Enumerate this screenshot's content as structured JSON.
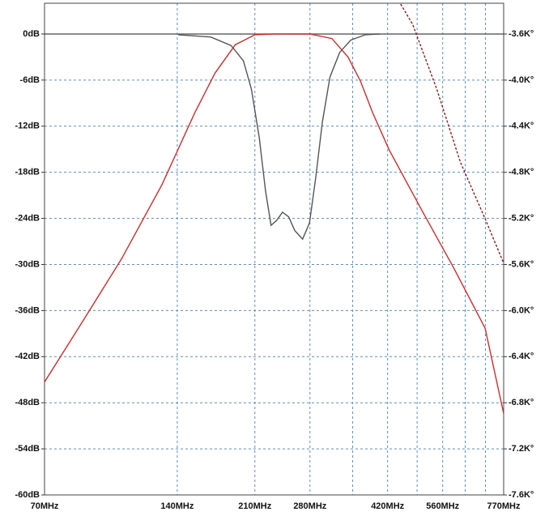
{
  "chart_data": {
    "type": "line",
    "log_x": true,
    "grid": true,
    "xlim": [
      70,
      770
    ],
    "ylim": [
      -60,
      4
    ],
    "y2lim": [
      -7600,
      -3333
    ],
    "xticks": [
      {
        "value": 70,
        "label": "70MHz"
      },
      {
        "value": 140,
        "label": "140MHz"
      },
      {
        "value": 210,
        "label": "210MHz"
      },
      {
        "value": 280,
        "label": "280MHz"
      },
      {
        "value": 420,
        "label": "420MHz"
      },
      {
        "value": 560,
        "label": "560MHz"
      },
      {
        "value": 770,
        "label": "770MHz"
      }
    ],
    "xminor_ticks": [
      350,
      490,
      630,
      700
    ],
    "yticks": [
      {
        "value": 0,
        "label": "0dB"
      },
      {
        "value": -6,
        "label": "-6dB"
      },
      {
        "value": -12,
        "label": "-12dB"
      },
      {
        "value": -18,
        "label": "-18dB"
      },
      {
        "value": -24,
        "label": "-24dB"
      },
      {
        "value": -30,
        "label": "-30dB"
      },
      {
        "value": -36,
        "label": "-36dB"
      },
      {
        "value": -42,
        "label": "-42dB"
      },
      {
        "value": -48,
        "label": "-48dB"
      },
      {
        "value": -54,
        "label": "-54dB"
      },
      {
        "value": -60,
        "label": "-60dB"
      }
    ],
    "y2ticks": [
      {
        "value": -3600,
        "label": "-3.6K°"
      },
      {
        "value": -4000,
        "label": "-4.0K°"
      },
      {
        "value": -4400,
        "label": "-4.4K°"
      },
      {
        "value": -4800,
        "label": "-4.8K°"
      },
      {
        "value": -5200,
        "label": "-5.2K°"
      },
      {
        "value": -5600,
        "label": "-5.6K°"
      },
      {
        "value": -6000,
        "label": "-6.0K°"
      },
      {
        "value": -6400,
        "label": "-6.4K°"
      },
      {
        "value": -6800,
        "label": "-6.8K°"
      },
      {
        "value": -7200,
        "label": "-7.2K°"
      },
      {
        "value": -7600,
        "label": "-7.6K°"
      }
    ],
    "series": [
      {
        "color": "#d42a2a",
        "dashed": false,
        "x": [
          70,
          84.6,
          104.6,
          129.3,
          153.3,
          170.5,
          189.6,
          210,
          233.5,
          280,
          314,
          341.6,
          364.3,
          388.7,
          423.7,
          502.7,
          592.6,
          698.8,
          770
        ],
        "values": [
          -45.3,
          -37.8,
          -29.3,
          -19.6,
          -10.3,
          -5.1,
          -1.4,
          -0.1,
          0,
          0,
          -0.6,
          -3.0,
          -6.1,
          -10.3,
          -15.1,
          -23.0,
          -30.4,
          -38.3,
          -49.4
        ]
      },
      {
        "color": "#555555",
        "dashed": false,
        "x": [
          140.7,
          166.8,
          185.5,
          197.8,
          206.2,
          214.9,
          222,
          228.5,
          235,
          242.6,
          250.5,
          258.7,
          269.4,
          279.3,
          288.4,
          298.8,
          310.8,
          327,
          346.5,
          374,
          404
        ],
        "values": [
          -0.1,
          -0.4,
          -1.5,
          -3.5,
          -7.2,
          -13.5,
          -20.4,
          -24.9,
          -24.3,
          -23.2,
          -23.8,
          -25.6,
          -26.7,
          -24.6,
          -18.8,
          -11.4,
          -5.6,
          -2.4,
          -0.8,
          -0.1,
          0
        ]
      },
      {
        "color": "#8a2020",
        "dashed": true,
        "axis": "y2",
        "x": [
          449.6,
          478.7,
          543,
          614,
          699,
          770
        ],
        "values": [
          -3340,
          -3516,
          -4078,
          -4711,
          -5203,
          -5589
        ]
      }
    ]
  }
}
